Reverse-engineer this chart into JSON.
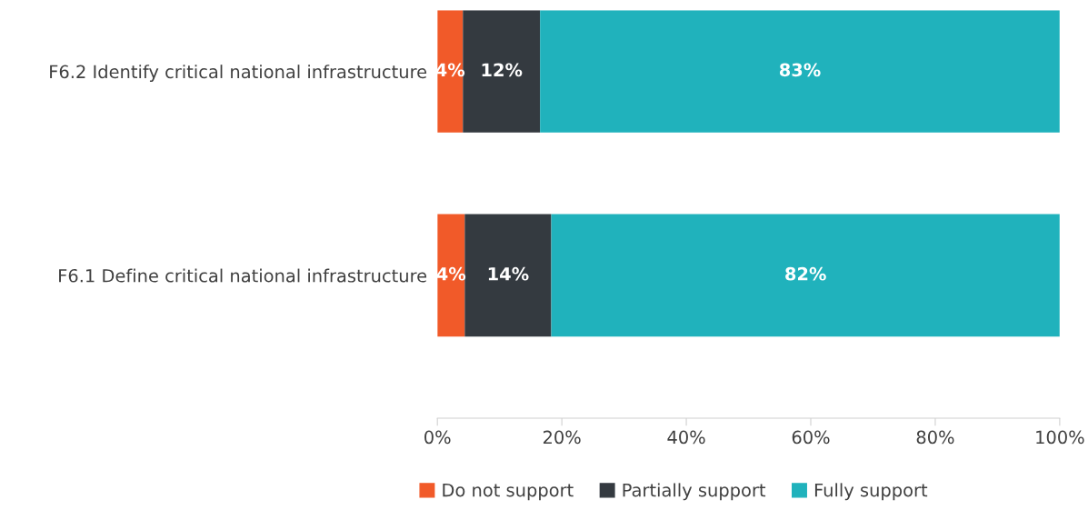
{
  "chart_data": {
    "type": "bar",
    "orientation": "horizontal",
    "stacked": true,
    "categories": [
      "F6.2 Identify critical national infrastructure",
      "F6.1 Define critical national infrastructure"
    ],
    "series": [
      {
        "name": "Do not support",
        "color": "#f15a29",
        "values": [
          4.1,
          4.4
        ],
        "value_labels": [
          "4%",
          "4%"
        ]
      },
      {
        "name": "Partially support",
        "color": "#343a40",
        "values": [
          12.4,
          13.9
        ],
        "value_labels": [
          "12%",
          "14%"
        ]
      },
      {
        "name": "Fully support",
        "color": "#20b2bc",
        "values": [
          83.5,
          81.7
        ],
        "value_labels": [
          "83%",
          "82%"
        ]
      }
    ],
    "xlim": [
      0,
      100
    ],
    "xticks": [
      {
        "value": 0,
        "label": "0%"
      },
      {
        "value": 20,
        "label": "20%"
      },
      {
        "value": 40,
        "label": "40%"
      },
      {
        "value": 60,
        "label": "60%"
      },
      {
        "value": 80,
        "label": "80%"
      },
      {
        "value": 100,
        "label": "100%"
      }
    ],
    "grid": false,
    "legend": "bottom"
  }
}
